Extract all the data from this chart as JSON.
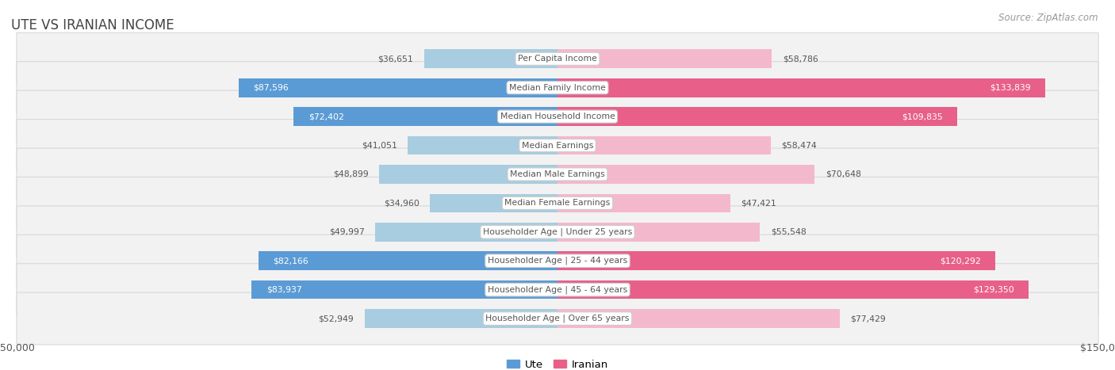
{
  "title": "Ute vs Iranian Income",
  "source": "Source: ZipAtlas.com",
  "categories": [
    "Per Capita Income",
    "Median Family Income",
    "Median Household Income",
    "Median Earnings",
    "Median Male Earnings",
    "Median Female Earnings",
    "Householder Age | Under 25 years",
    "Householder Age | 25 - 44 years",
    "Householder Age | 45 - 64 years",
    "Householder Age | Over 65 years"
  ],
  "ute_values": [
    36651,
    87596,
    72402,
    41051,
    48899,
    34960,
    49997,
    82166,
    83937,
    52949
  ],
  "iranian_values": [
    58786,
    133839,
    109835,
    58474,
    70648,
    47421,
    55548,
    120292,
    129350,
    77429
  ],
  "ute_color_light": "#a8cce0",
  "ute_color_strong": "#5b9bd5",
  "iranian_color_light": "#f4b8cc",
  "iranian_color_strong": "#e8608a",
  "max_value": 150000,
  "bg_color": "#ffffff",
  "row_bg_color": "#f2f2f2",
  "row_border_color": "#d8d8d8",
  "title_color": "#444444",
  "value_color_dark": "#555555",
  "value_color_light": "#ffffff",
  "cat_label_bg": "#ffffff",
  "cat_label_border": "#cccccc",
  "cat_label_color": "#555555",
  "source_color": "#999999"
}
